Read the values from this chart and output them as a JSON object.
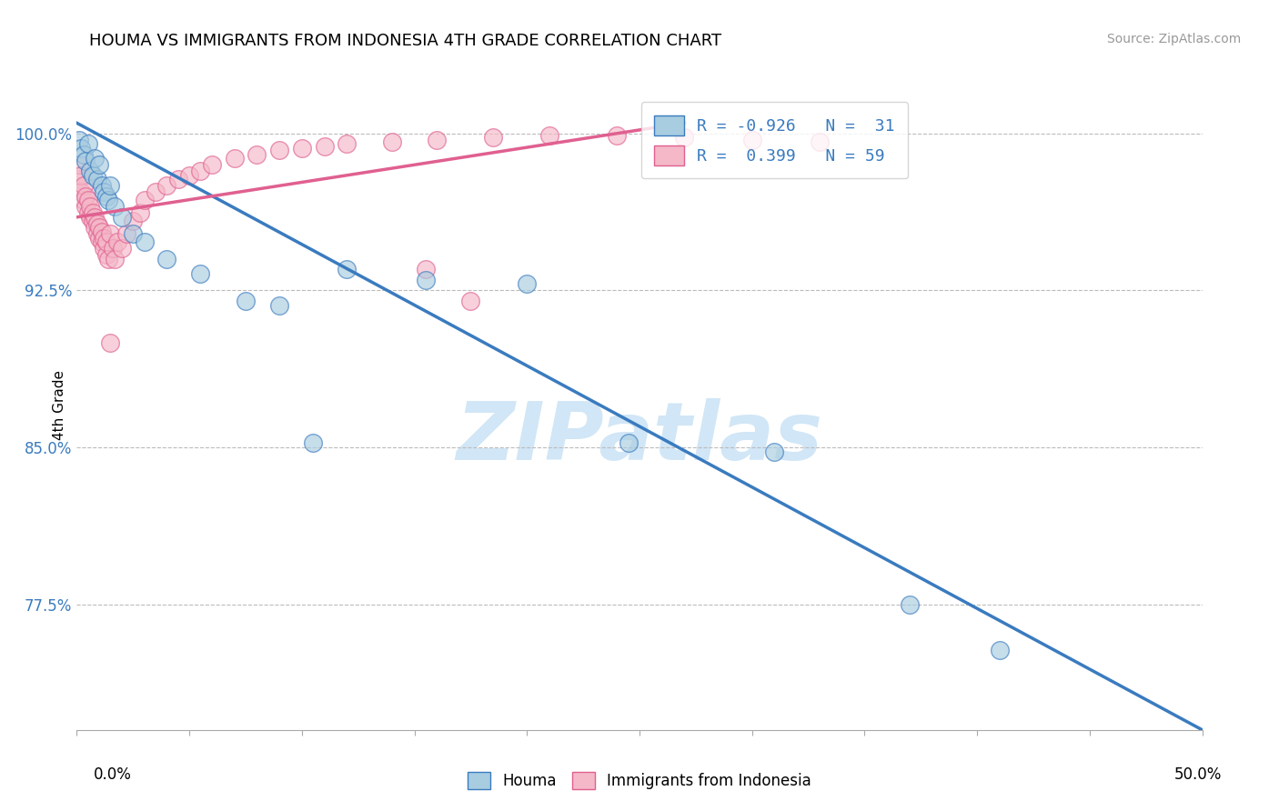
{
  "title": "HOUMA VS IMMIGRANTS FROM INDONESIA 4TH GRADE CORRELATION CHART",
  "source_text": "Source: ZipAtlas.com",
  "ylabel": "4th Grade",
  "yticks": [
    0.775,
    0.85,
    0.925,
    1.0
  ],
  "ytick_labels": [
    "77.5%",
    "85.0%",
    "92.5%",
    "100.0%"
  ],
  "xlim": [
    0.0,
    0.5
  ],
  "ylim": [
    0.715,
    1.025
  ],
  "blue_color": "#a8cce0",
  "pink_color": "#f4b8c8",
  "blue_line_color": "#3a7bbf",
  "pink_line_color": "#e06090",
  "legend_label_color": "#3a7bbf",
  "watermark_color": "#cce4f5",
  "blue_line_x0": 0.0,
  "blue_line_y0": 1.005,
  "blue_line_x1": 0.5,
  "blue_line_y1": 0.715,
  "pink_line_x0": 0.0,
  "pink_line_y0": 0.96,
  "pink_line_x1": 0.27,
  "pink_line_y1": 1.005,
  "blue_scatter_x": [
    0.001,
    0.002,
    0.003,
    0.004,
    0.005,
    0.006,
    0.007,
    0.008,
    0.009,
    0.01,
    0.011,
    0.012,
    0.013,
    0.014,
    0.015,
    0.017,
    0.02,
    0.025,
    0.03,
    0.04,
    0.055,
    0.075,
    0.09,
    0.105,
    0.12,
    0.155,
    0.2,
    0.245,
    0.31,
    0.37,
    0.41
  ],
  "blue_scatter_y": [
    0.997,
    0.993,
    0.99,
    0.987,
    0.995,
    0.982,
    0.98,
    0.988,
    0.978,
    0.985,
    0.975,
    0.972,
    0.97,
    0.968,
    0.975,
    0.965,
    0.96,
    0.952,
    0.948,
    0.94,
    0.933,
    0.92,
    0.918,
    0.852,
    0.935,
    0.93,
    0.928,
    0.852,
    0.848,
    0.775,
    0.753
  ],
  "pink_scatter_x": [
    0.001,
    0.001,
    0.002,
    0.002,
    0.003,
    0.003,
    0.004,
    0.004,
    0.005,
    0.005,
    0.006,
    0.006,
    0.007,
    0.007,
    0.008,
    0.008,
    0.009,
    0.009,
    0.01,
    0.01,
    0.011,
    0.011,
    0.012,
    0.012,
    0.013,
    0.013,
    0.014,
    0.015,
    0.016,
    0.017,
    0.018,
    0.02,
    0.022,
    0.025,
    0.028,
    0.03,
    0.035,
    0.04,
    0.045,
    0.05,
    0.055,
    0.06,
    0.07,
    0.08,
    0.09,
    0.1,
    0.11,
    0.12,
    0.14,
    0.16,
    0.185,
    0.21,
    0.24,
    0.27,
    0.3,
    0.33,
    0.155,
    0.175,
    0.015
  ],
  "pink_scatter_y": [
    0.978,
    0.985,
    0.972,
    0.98,
    0.968,
    0.975,
    0.965,
    0.97,
    0.962,
    0.968,
    0.96,
    0.965,
    0.958,
    0.962,
    0.955,
    0.96,
    0.952,
    0.957,
    0.95,
    0.955,
    0.948,
    0.953,
    0.945,
    0.95,
    0.942,
    0.948,
    0.94,
    0.952,
    0.945,
    0.94,
    0.948,
    0.945,
    0.952,
    0.958,
    0.962,
    0.968,
    0.972,
    0.975,
    0.978,
    0.98,
    0.982,
    0.985,
    0.988,
    0.99,
    0.992,
    0.993,
    0.994,
    0.995,
    0.996,
    0.997,
    0.998,
    0.999,
    0.999,
    0.998,
    0.997,
    0.996,
    0.935,
    0.92,
    0.9
  ]
}
